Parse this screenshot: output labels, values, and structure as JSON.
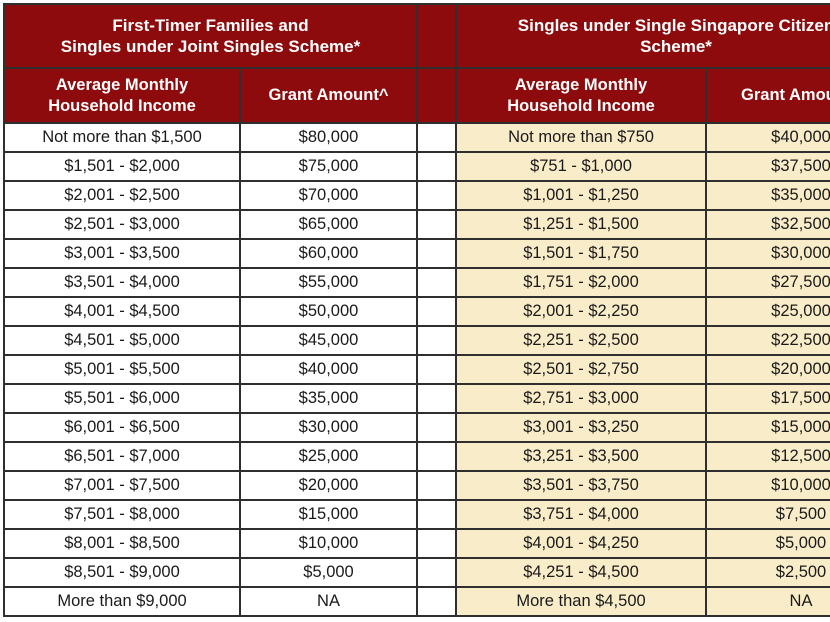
{
  "colors": {
    "header_bg": "#8E0B0D",
    "header_text": "#FFFFFF",
    "left_cell_bg": "#FFFFFF",
    "right_cell_bg": "#F9ECC8",
    "border": "#2F2F2F",
    "cell_text": "#1A1A1A"
  },
  "sections": {
    "left": {
      "title_line1": "First-Timer Families and",
      "title_line2": "Singles under Joint Singles Scheme*",
      "income_header_line1": "Average Monthly",
      "income_header_line2": "Household Income",
      "grant_header": "Grant Amount^"
    },
    "right": {
      "title_line1": "Singles under Single Singapore Citizen",
      "title_line2": "Scheme*",
      "income_header_line1": "Average Monthly",
      "income_header_line2": "Household Income",
      "grant_header": "Grant Amount^"
    }
  },
  "chart_data": [
    {
      "type": "table",
      "title": "First-Timer Families and Singles under Joint Singles Scheme*",
      "columns": [
        "Average Monthly Household Income",
        "Grant Amount^"
      ],
      "rows": [
        [
          "Not more than $1,500",
          "$80,000"
        ],
        [
          "$1,501 - $2,000",
          "$75,000"
        ],
        [
          "$2,001 - $2,500",
          "$70,000"
        ],
        [
          "$2,501 - $3,000",
          "$65,000"
        ],
        [
          "$3,001 - $3,500",
          "$60,000"
        ],
        [
          "$3,501 - $4,000",
          "$55,000"
        ],
        [
          "$4,001 - $4,500",
          "$50,000"
        ],
        [
          "$4,501 - $5,000",
          "$45,000"
        ],
        [
          "$5,001 - $5,500",
          "$40,000"
        ],
        [
          "$5,501 - $6,000",
          "$35,000"
        ],
        [
          "$6,001 - $6,500",
          "$30,000"
        ],
        [
          "$6,501 - $7,000",
          "$25,000"
        ],
        [
          "$7,001 - $7,500",
          "$20,000"
        ],
        [
          "$7,501 - $8,000",
          "$15,000"
        ],
        [
          "$8,001 - $8,500",
          "$10,000"
        ],
        [
          "$8,501 - $9,000",
          "$5,000"
        ],
        [
          "More than $9,000",
          "NA"
        ]
      ]
    },
    {
      "type": "table",
      "title": "Singles under Single Singapore Citizen Scheme*",
      "columns": [
        "Average Monthly Household Income",
        "Grant Amount^"
      ],
      "rows": [
        [
          "Not more than $750",
          "$40,000"
        ],
        [
          "$751 - $1,000",
          "$37,500"
        ],
        [
          "$1,001 - $1,250",
          "$35,000"
        ],
        [
          "$1,251 - $1,500",
          "$32,500"
        ],
        [
          "$1,501 - $1,750",
          "$30,000"
        ],
        [
          "$1,751 - $2,000",
          "$27,500"
        ],
        [
          "$2,001 - $2,250",
          "$25,000"
        ],
        [
          "$2,251 - $2,500",
          "$22,500"
        ],
        [
          "$2,501 - $2,750",
          "$20,000"
        ],
        [
          "$2,751 - $3,000",
          "$17,500"
        ],
        [
          "$3,001 - $3,250",
          "$15,000"
        ],
        [
          "$3,251 - $3,500",
          "$12,500"
        ],
        [
          "$3,501 - $3,750",
          "$10,000"
        ],
        [
          "$3,751 - $4,000",
          "$7,500"
        ],
        [
          "$4,001 - $4,250",
          "$5,000"
        ],
        [
          "$4,251 - $4,500",
          "$2,500"
        ],
        [
          "More than $4,500",
          "NA"
        ]
      ]
    }
  ]
}
